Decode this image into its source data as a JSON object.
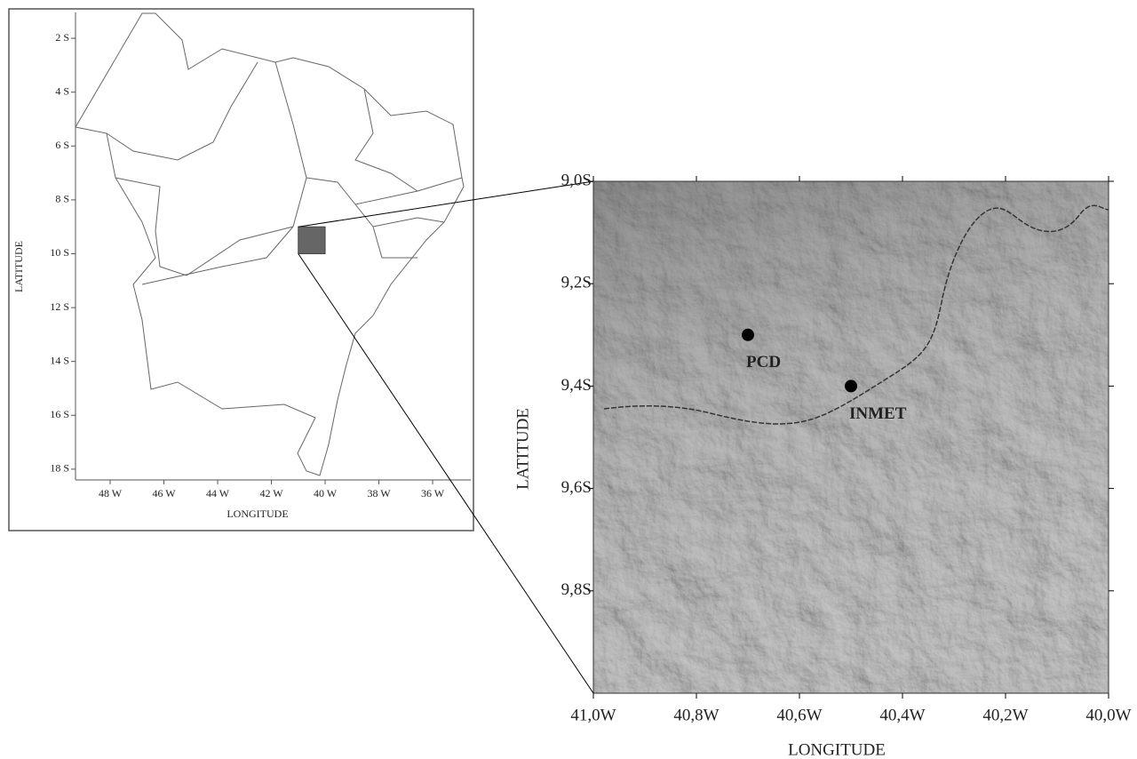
{
  "left_map": {
    "x_label": "LONGITUDE",
    "y_label": "LATITUDE",
    "xlim": [
      -49.29,
      -34.58
    ],
    "ylim": [
      -18.4,
      -1.04
    ],
    "xticks": [
      {
        "value": -48,
        "label": "48 W"
      },
      {
        "value": -46,
        "label": "46 W"
      },
      {
        "value": -44,
        "label": "44 W"
      },
      {
        "value": -42,
        "label": "42 W"
      },
      {
        "value": -40,
        "label": "40 W"
      },
      {
        "value": -38,
        "label": "38 W"
      },
      {
        "value": -36,
        "label": "36 W"
      }
    ],
    "yticks": [
      {
        "value": -2,
        "label": "2 S"
      },
      {
        "value": -4,
        "label": "4 S"
      },
      {
        "value": -6,
        "label": "6 S"
      },
      {
        "value": -8,
        "label": "8 S"
      },
      {
        "value": -10,
        "label": "10 S"
      },
      {
        "value": -12,
        "label": "12 S"
      },
      {
        "value": -14,
        "label": "14 S"
      },
      {
        "value": -16,
        "label": "16 S"
      },
      {
        "value": -18,
        "label": "18 S"
      }
    ]
  },
  "right_map": {
    "x_label": "LONGITUDE",
    "y_label": "LATITUDE",
    "xlim": [
      -41,
      -40
    ],
    "ylim": [
      -10,
      -9
    ],
    "xticks": [
      {
        "value": -41,
        "label": "41,0W"
      },
      {
        "value": -40.8,
        "label": "40,8W"
      },
      {
        "value": -40.6,
        "label": "40,6W"
      },
      {
        "value": -40.4,
        "label": "40,4W"
      },
      {
        "value": -40.2,
        "label": "40,2W"
      },
      {
        "value": -40,
        "label": "40,0W"
      }
    ],
    "yticks": [
      {
        "value": -9,
        "label": "9,0S"
      },
      {
        "value": -9.2,
        "label": "9,2S"
      },
      {
        "value": -9.4,
        "label": "9,4S"
      },
      {
        "value": -9.6,
        "label": "9,6S"
      },
      {
        "value": -9.8,
        "label": "9,8S"
      }
    ],
    "points": [
      {
        "label": "PCD",
        "lon": -40.7,
        "lat": -9.3
      },
      {
        "label": "INMET",
        "lon": -40.5,
        "lat": -9.4
      }
    ]
  }
}
